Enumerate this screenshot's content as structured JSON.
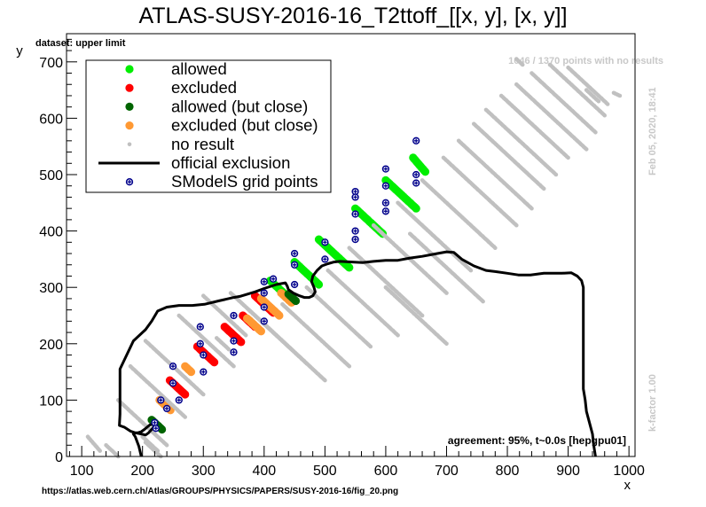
{
  "header": {
    "title": "ATLAS-SUSY-2016-16_T2ttoff_[[x, y], [x, y]]",
    "dataset_label": "dataset: upper limit",
    "stats_label": "1046 / 1370 points with no results",
    "date_label": "Feb 05, 2020, 18:41",
    "kfactor_label": "k-factor 1.00",
    "agreement_label": "agreement: 95%, t~0.0s [hepgpu01]",
    "footer_url": "https://atlas.web.cern.ch/Atlas/GROUPS/PHYSICS/PAPERS/SUSY-2016-16/fig_20.png"
  },
  "chart_data": {
    "type": "scatter",
    "title": "ATLAS-SUSY-2016-16_T2ttoff_[[x, y], [x, y]]",
    "xlabel": "x",
    "ylabel": "y",
    "xlim": [
      75,
      1010
    ],
    "ylim": [
      0,
      750
    ],
    "xticks": [
      100,
      200,
      300,
      400,
      500,
      600,
      700,
      800,
      900,
      1000
    ],
    "yticks": [
      0,
      100,
      200,
      300,
      400,
      500,
      600,
      700
    ],
    "legend": {
      "placement": "top-left",
      "entries": [
        {
          "label": "allowed",
          "color": "#00ee00",
          "marker": "dot"
        },
        {
          "label": "excluded",
          "color": "#ff0000",
          "marker": "dot"
        },
        {
          "label": "allowed (but close)",
          "color": "#006400",
          "marker": "dot"
        },
        {
          "label": "excluded (but close)",
          "color": "#ff9933",
          "marker": "dot"
        },
        {
          "label": "no result",
          "color": "#c0c0c0",
          "marker": "small-dot"
        },
        {
          "label": "official exclusion",
          "color": "#000000",
          "marker": "line"
        },
        {
          "label": "SModelS grid points",
          "color": "#00008b",
          "marker": "cross-circle"
        }
      ]
    },
    "bands": [
      {
        "x0": 205,
        "x1": 230,
        "m0": 25,
        "m1": 0,
        "dm": 75,
        "status": "no result"
      },
      {
        "x0": 200,
        "x1": 225,
        "m0": 35,
        "m1": 10,
        "dm": 75,
        "status": "no result"
      },
      {
        "x0": 215,
        "x1": 232,
        "m0": 65,
        "m1": 48,
        "dm": 75,
        "status": "allowed (but close)"
      },
      {
        "x0": 228,
        "x1": 246,
        "m0": 100,
        "m1": 82,
        "dm": 75,
        "status": "excluded (but close)"
      },
      {
        "x0": 245,
        "x1": 270,
        "m0": 135,
        "m1": 110,
        "dm": 75,
        "status": "excluded"
      },
      {
        "x0": 270,
        "x1": 280,
        "m0": 160,
        "m1": 150,
        "dm": 75,
        "status": "excluded (but close)"
      },
      {
        "x0": 290,
        "x1": 318,
        "m0": 195,
        "m1": 167,
        "dm": 75,
        "status": "excluded"
      },
      {
        "x0": 322,
        "x1": 342,
        "m0": 210,
        "m1": 190,
        "dm": 75,
        "status": "no result"
      },
      {
        "x0": 335,
        "x1": 362,
        "m0": 230,
        "m1": 203,
        "dm": 75,
        "status": "excluded"
      },
      {
        "x0": 365,
        "x1": 385,
        "m0": 250,
        "m1": 230,
        "dm": 75,
        "status": "excluded"
      },
      {
        "x0": 372,
        "x1": 395,
        "m0": 245,
        "m1": 222,
        "dm": 75,
        "status": "excluded (but close)"
      },
      {
        "x0": 385,
        "x1": 415,
        "m0": 285,
        "m1": 255,
        "dm": 75,
        "status": "excluded"
      },
      {
        "x0": 395,
        "x1": 425,
        "m0": 280,
        "m1": 250,
        "dm": 75,
        "status": "excluded (but close)"
      },
      {
        "x0": 410,
        "x1": 440,
        "m0": 312,
        "m1": 282,
        "dm": 75,
        "status": "allowed"
      },
      {
        "x0": 428,
        "x1": 445,
        "m0": 290,
        "m1": 273,
        "dm": 75,
        "status": "excluded (but close)"
      },
      {
        "x0": 440,
        "x1": 452,
        "m0": 288,
        "m1": 276,
        "dm": 75,
        "status": "allowed (but close)"
      },
      {
        "x0": 450,
        "x1": 490,
        "m0": 345,
        "m1": 305,
        "dm": 75,
        "status": "allowed"
      },
      {
        "x0": 490,
        "x1": 540,
        "m0": 385,
        "m1": 335,
        "dm": 75,
        "status": "allowed"
      },
      {
        "x0": 550,
        "x1": 595,
        "m0": 440,
        "m1": 395,
        "dm": 75,
        "status": "allowed"
      },
      {
        "x0": 600,
        "x1": 650,
        "m0": 490,
        "m1": 440,
        "dm": 75,
        "status": "allowed"
      },
      {
        "x0": 645,
        "x1": 665,
        "m0": 530,
        "m1": 505,
        "dm": 75,
        "status": "allowed"
      },
      {
        "x0": 110,
        "x1": 130,
        "m0": 35,
        "m1": 10,
        "dm": 75,
        "status": "no result"
      },
      {
        "x0": 140,
        "x1": 160,
        "m0": 20,
        "m1": 0,
        "dm": 75,
        "status": "no result"
      },
      {
        "x0": 160,
        "x1": 240,
        "m0": 100,
        "m1": 20,
        "dm": 75,
        "status": "no result"
      },
      {
        "x0": 180,
        "x1": 270,
        "m0": 160,
        "m1": 70,
        "dm": 75,
        "status": "no result"
      },
      {
        "x0": 205,
        "x1": 300,
        "m0": 205,
        "m1": 110,
        "dm": 75,
        "status": "no result"
      },
      {
        "x0": 260,
        "x1": 350,
        "m0": 250,
        "m1": 160,
        "dm": 75,
        "status": "no result"
      },
      {
        "x0": 300,
        "x1": 370,
        "m0": 285,
        "m1": 215,
        "dm": 75,
        "status": "no result"
      },
      {
        "x0": 345,
        "x1": 445,
        "m0": 290,
        "m1": 190,
        "dm": 75,
        "status": "no result"
      },
      {
        "x0": 375,
        "x1": 470,
        "m0": 260,
        "m1": 165,
        "dm": 75,
        "status": "no result"
      },
      {
        "x0": 395,
        "x1": 500,
        "m0": 240,
        "m1": 135,
        "dm": 75,
        "status": "no result"
      },
      {
        "x0": 430,
        "x1": 540,
        "m0": 270,
        "m1": 160,
        "dm": 75,
        "status": "no result"
      },
      {
        "x0": 470,
        "x1": 575,
        "m0": 300,
        "m1": 195,
        "dm": 75,
        "status": "no result"
      },
      {
        "x0": 505,
        "x1": 620,
        "m0": 330,
        "m1": 215,
        "dm": 75,
        "status": "no result"
      },
      {
        "x0": 540,
        "x1": 660,
        "m0": 370,
        "m1": 250,
        "dm": 75,
        "status": "no result"
      },
      {
        "x0": 580,
        "x1": 700,
        "m0": 410,
        "m1": 290,
        "dm": 75,
        "status": "no result"
      },
      {
        "x0": 620,
        "x1": 740,
        "m0": 450,
        "m1": 330,
        "dm": 75,
        "status": "no result"
      },
      {
        "x0": 660,
        "x1": 780,
        "m0": 490,
        "m1": 370,
        "dm": 75,
        "status": "no result"
      },
      {
        "x0": 695,
        "x1": 815,
        "m0": 530,
        "m1": 410,
        "dm": 75,
        "status": "no result"
      },
      {
        "x0": 720,
        "x1": 840,
        "m0": 560,
        "m1": 440,
        "dm": 75,
        "status": "no result"
      },
      {
        "x0": 745,
        "x1": 860,
        "m0": 590,
        "m1": 475,
        "dm": 75,
        "status": "no result"
      },
      {
        "x0": 765,
        "x1": 880,
        "m0": 615,
        "m1": 500,
        "dm": 75,
        "status": "no result"
      },
      {
        "x0": 790,
        "x1": 900,
        "m0": 640,
        "m1": 530,
        "dm": 75,
        "status": "no result"
      },
      {
        "x0": 815,
        "x1": 930,
        "m0": 660,
        "m1": 545,
        "dm": 75,
        "status": "no result"
      },
      {
        "x0": 840,
        "x1": 945,
        "m0": 680,
        "m1": 575,
        "dm": 75,
        "status": "no result"
      },
      {
        "x0": 870,
        "x1": 960,
        "m0": 695,
        "m1": 605,
        "dm": 75,
        "status": "no result"
      },
      {
        "x0": 900,
        "x1": 965,
        "m0": 690,
        "m1": 625,
        "dm": 75,
        "status": "no result"
      },
      {
        "x0": 930,
        "x1": 950,
        "m0": 650,
        "m1": 630,
        "dm": 75,
        "status": "no result"
      },
      {
        "x0": 975,
        "x1": 985,
        "m0": 645,
        "m1": 640,
        "dm": 75,
        "status": "no result"
      },
      {
        "x0": 815,
        "x1": 825,
        "m0": 705,
        "m1": 695,
        "dm": 75,
        "status": "no result"
      },
      {
        "x0": 640,
        "x1": 760,
        "m0": 395,
        "m1": 275,
        "dm": 75,
        "status": "no result"
      },
      {
        "x0": 600,
        "x1": 700,
        "m0": 300,
        "m1": 200,
        "dm": 75,
        "status": "no result"
      }
    ],
    "official_exclusion": [
      [
        198,
        0
      ],
      [
        194,
        18
      ],
      [
        188,
        35
      ],
      [
        185,
        40
      ],
      [
        188,
        42
      ],
      [
        198,
        40
      ],
      [
        205,
        38
      ],
      [
        210,
        42
      ],
      [
        215,
        48
      ],
      [
        218,
        52
      ],
      [
        222,
        55
      ],
      [
        220,
        58
      ],
      [
        212,
        56
      ],
      [
        203,
        48
      ],
      [
        198,
        44
      ],
      [
        192,
        42
      ],
      [
        188,
        42
      ],
      [
        180,
        45
      ],
      [
        170,
        52
      ],
      [
        162,
        55
      ],
      [
        163,
        75
      ],
      [
        163,
        95
      ],
      [
        163,
        155
      ],
      [
        185,
        205
      ],
      [
        205,
        225
      ],
      [
        215,
        240
      ],
      [
        225,
        258
      ],
      [
        240,
        265
      ],
      [
        260,
        268
      ],
      [
        282,
        268
      ],
      [
        302,
        270
      ],
      [
        325,
        276
      ],
      [
        350,
        282
      ],
      [
        360,
        284
      ],
      [
        385,
        292
      ],
      [
        400,
        298
      ],
      [
        420,
        305
      ],
      [
        435,
        308
      ],
      [
        438,
        302
      ],
      [
        440,
        296
      ],
      [
        448,
        290
      ],
      [
        458,
        285
      ],
      [
        466,
        282
      ],
      [
        474,
        282
      ],
      [
        480,
        285
      ],
      [
        484,
        292
      ],
      [
        482,
        300
      ],
      [
        478,
        310
      ],
      [
        480,
        320
      ],
      [
        487,
        330
      ],
      [
        495,
        338
      ],
      [
        505,
        342
      ],
      [
        515,
        345
      ],
      [
        525,
        346
      ],
      [
        545,
        345
      ],
      [
        562,
        344
      ],
      [
        580,
        346
      ],
      [
        600,
        348
      ],
      [
        620,
        348
      ],
      [
        640,
        352
      ],
      [
        660,
        355
      ],
      [
        685,
        360
      ],
      [
        700,
        363
      ],
      [
        712,
        362
      ],
      [
        725,
        350
      ],
      [
        745,
        338
      ],
      [
        765,
        330
      ],
      [
        780,
        328
      ],
      [
        800,
        325
      ],
      [
        818,
        322
      ],
      [
        838,
        322
      ],
      [
        860,
        325
      ],
      [
        890,
        325
      ],
      [
        905,
        326
      ],
      [
        915,
        320
      ],
      [
        922,
        312
      ],
      [
        925,
        300
      ],
      [
        925,
        280
      ],
      [
        925,
        240
      ],
      [
        925,
        200
      ],
      [
        925,
        150
      ],
      [
        925,
        120
      ],
      [
        928,
        100
      ],
      [
        930,
        80
      ],
      [
        935,
        60
      ],
      [
        940,
        40
      ],
      [
        942,
        20
      ],
      [
        945,
        0
      ]
    ],
    "grid_points": [
      [
        220,
        60
      ],
      [
        222,
        50
      ],
      [
        230,
        100
      ],
      [
        240,
        85
      ],
      [
        250,
        130
      ],
      [
        250,
        160
      ],
      [
        260,
        100
      ],
      [
        295,
        230
      ],
      [
        295,
        200
      ],
      [
        300,
        180
      ],
      [
        300,
        150
      ],
      [
        350,
        250
      ],
      [
        350,
        205
      ],
      [
        350,
        185
      ],
      [
        400,
        310
      ],
      [
        400,
        290
      ],
      [
        400,
        265
      ],
      [
        400,
        240
      ],
      [
        415,
        315
      ],
      [
        450,
        360
      ],
      [
        450,
        340
      ],
      [
        450,
        305
      ],
      [
        500,
        380
      ],
      [
        500,
        350
      ],
      [
        550,
        470
      ],
      [
        550,
        460
      ],
      [
        550,
        430
      ],
      [
        550,
        400
      ],
      [
        550,
        385
      ],
      [
        600,
        510
      ],
      [
        600,
        480
      ],
      [
        600,
        450
      ],
      [
        600,
        435
      ],
      [
        650,
        560
      ],
      [
        650,
        500
      ],
      [
        650,
        485
      ]
    ]
  }
}
